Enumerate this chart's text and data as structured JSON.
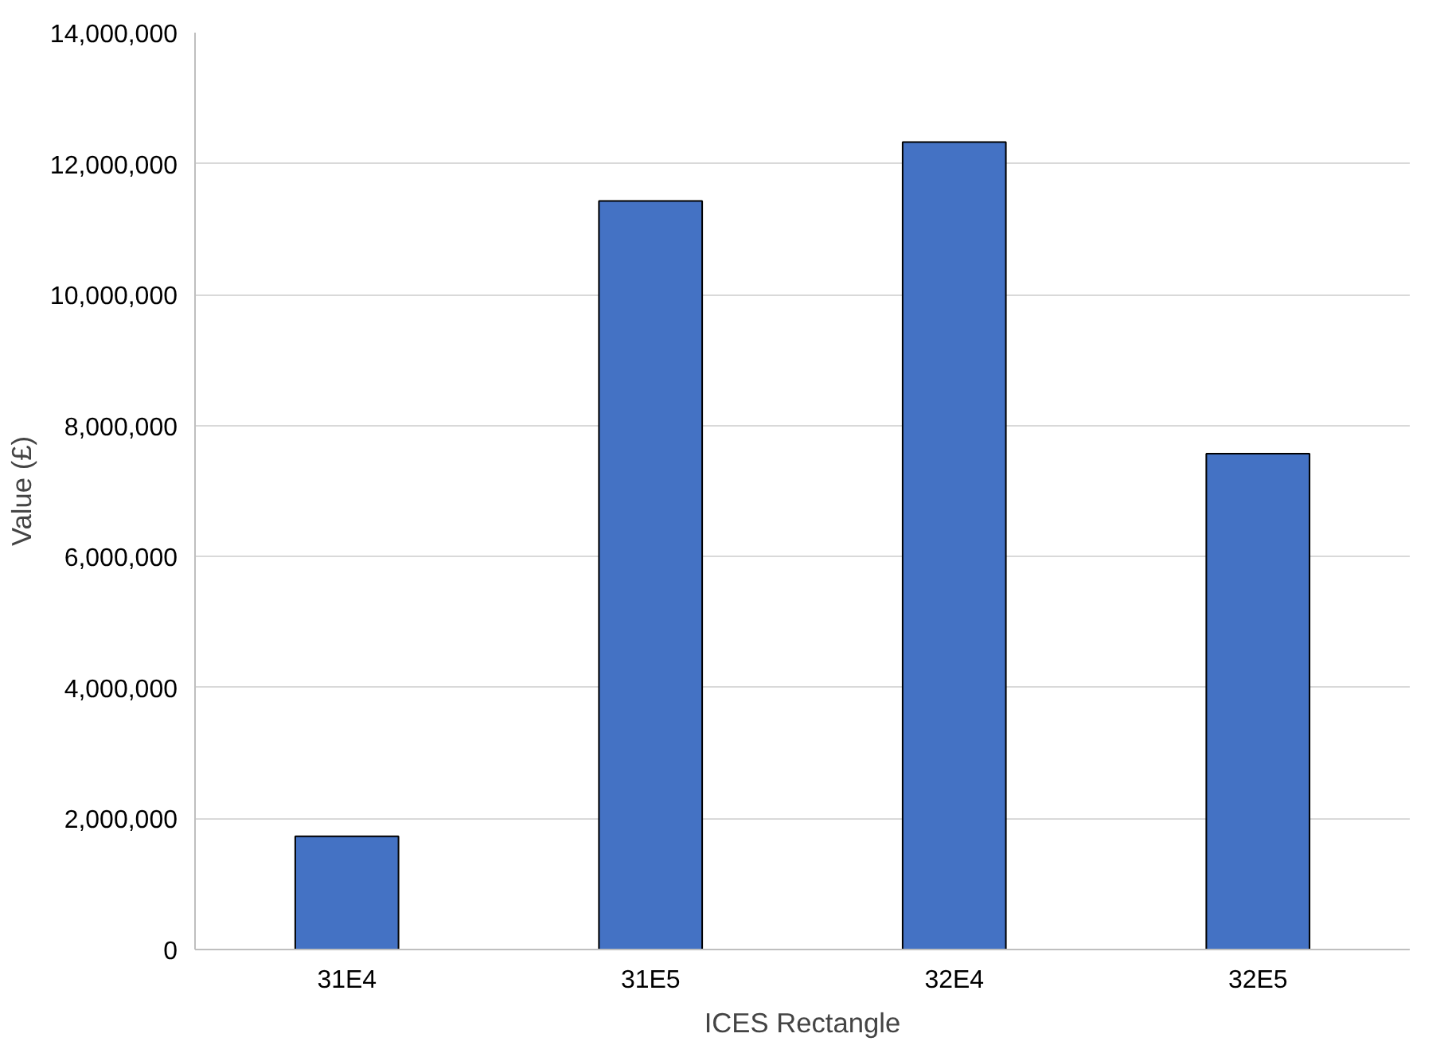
{
  "chart_data": {
    "type": "bar",
    "xlabel": "ICES Rectangle",
    "ylabel": "Value (£)",
    "categories": [
      "31E4",
      "31E5",
      "32E4",
      "32E5"
    ],
    "values": [
      1730000,
      11430000,
      12330000,
      7570000
    ],
    "color": "#4472c4",
    "ylim": [
      0,
      14000000
    ],
    "yticks": [
      {
        "value": 0,
        "label": "0"
      },
      {
        "value": 2000000,
        "label": "2,000,000"
      },
      {
        "value": 4000000,
        "label": "4,000,000"
      },
      {
        "value": 6000000,
        "label": "6,000,000"
      },
      {
        "value": 8000000,
        "label": "8,000,000"
      },
      {
        "value": 10000000,
        "label": "10,000,000"
      },
      {
        "value": 12000000,
        "label": "12,000,000"
      },
      {
        "value": 14000000,
        "label": "14,000,000"
      }
    ],
    "grid": "y"
  }
}
